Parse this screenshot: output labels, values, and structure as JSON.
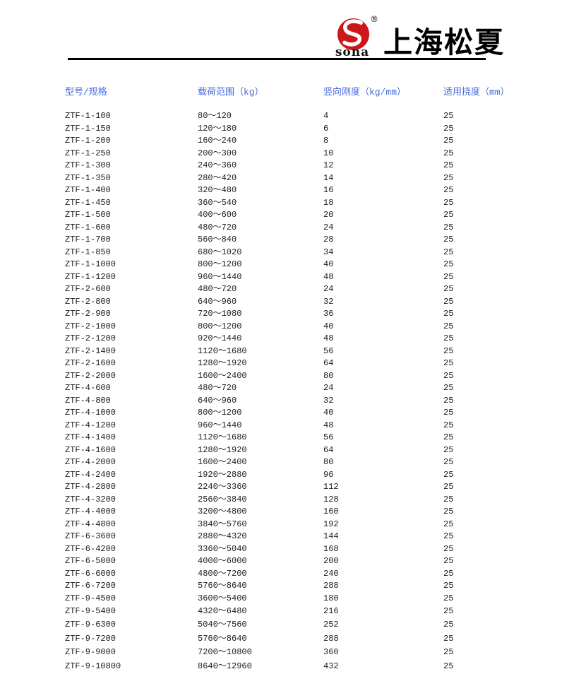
{
  "brand": {
    "logo_text": "sona",
    "registered_mark": "®",
    "company_name": "上海松夏",
    "logo_red": "#cd1618"
  },
  "table": {
    "header_color": "#4668d9",
    "columns": [
      "型号/规格",
      "载荷范围（kg）",
      "竖向刚度（kg/mm）",
      "适用挠度（mm）"
    ],
    "rows": [
      [
        "ZTF-1-100",
        "80～120",
        "4",
        "25"
      ],
      [
        "ZTF-1-150",
        "120～180",
        "6",
        "25"
      ],
      [
        "ZTF-1-200",
        "160～240",
        "8",
        "25"
      ],
      [
        "ZTF-1-250",
        "200～300",
        "10",
        "25"
      ],
      [
        "ZTF-1-300",
        "240～360",
        "12",
        "25"
      ],
      [
        "ZTF-1-350",
        "280～420",
        "14",
        "25"
      ],
      [
        "ZTF-1-400",
        "320～480",
        "16",
        "25"
      ],
      [
        "ZTF-1-450",
        "360～540",
        "18",
        "25"
      ],
      [
        "ZTF-1-500",
        "400～600",
        "20",
        "25"
      ],
      [
        "ZTF-1-600",
        "480～720",
        "24",
        "25"
      ],
      [
        "ZTF-1-700",
        "560～840",
        "28",
        "25"
      ],
      [
        "ZTF-1-850",
        "680～1020",
        "34",
        "25"
      ],
      [
        "ZTF-1-1000",
        "800～1200",
        "40",
        "25"
      ],
      [
        "ZTF-1-1200",
        "960～1440",
        "48",
        "25"
      ],
      [
        "ZTF-2-600",
        "480～720",
        "24",
        "25"
      ],
      [
        "ZTF-2-800",
        "640～960",
        "32",
        "25"
      ],
      [
        "ZTF-2-900",
        "720～1080",
        "36",
        "25"
      ],
      [
        "ZTF-2-1000",
        "800～1200",
        "40",
        "25"
      ],
      [
        "ZTF-2-1200",
        "920～1440",
        "48",
        "25"
      ],
      [
        "ZTF-2-1400",
        "1120～1680",
        "56",
        "25"
      ],
      [
        "ZTF-2-1600",
        "1280～1920",
        "64",
        "25"
      ],
      [
        "ZTF-2-2000",
        "1600～2400",
        "80",
        "25"
      ],
      [
        "ZTF-4-600",
        "480～720",
        "24",
        "25"
      ],
      [
        "ZTF-4-800",
        "640～960",
        "32",
        "25"
      ],
      [
        "ZTF-4-1000",
        "800～1200",
        "40",
        "25"
      ],
      [
        "ZTF-4-1200",
        "960～1440",
        "48",
        "25"
      ],
      [
        "ZTF-4-1400",
        "1120～1680",
        "56",
        "25"
      ],
      [
        "ZTF-4-1600",
        "1280～1920",
        "64",
        "25"
      ],
      [
        "ZTF-4-2000",
        "1600～2400",
        "80",
        "25"
      ],
      [
        "ZTF-4-2400",
        "1920～2880",
        "96",
        "25"
      ],
      [
        "ZTF-4-2800",
        "2240～3360",
        "112",
        "25"
      ],
      [
        "ZTF-4-3200",
        "2560～3840",
        "128",
        "25"
      ],
      [
        "ZTF-4-4000",
        "3200～4800",
        "160",
        "25"
      ],
      [
        "ZTF-4-4800",
        "3840～5760",
        "192",
        "25"
      ],
      [
        "ZTF-6-3600",
        "2880～4320",
        "144",
        "25"
      ],
      [
        "ZTF-6-4200",
        "3360～5040",
        "168",
        "25"
      ],
      [
        "ZTF-6-5000",
        "4000～6000",
        "200",
        "25"
      ],
      [
        "ZTF-6-6000",
        "4800～7200",
        "240",
        "25"
      ],
      [
        "ZTF-6-7200",
        "5760～8640",
        "288",
        "25"
      ],
      [
        "ZTF-9-4500",
        "3600～5400",
        "180",
        "25"
      ],
      [
        "ZTF-9-5400",
        "4320～6480",
        "216",
        "25"
      ],
      [
        "ZTF-9-6300",
        "5040～7560",
        "252",
        "25"
      ],
      [
        "ZTF-9-7200",
        "5760～8640",
        "288",
        "25"
      ],
      [
        "ZTF-9-9000",
        "7200～10800",
        "360",
        "25"
      ],
      [
        "ZTF-9-10800",
        "8640～12960",
        "432",
        "25"
      ]
    ]
  }
}
